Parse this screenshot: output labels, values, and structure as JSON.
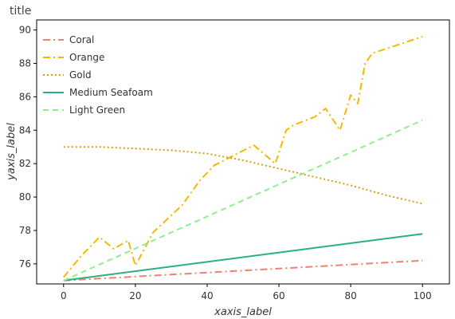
{
  "chart_data": {
    "type": "line",
    "title": "title",
    "xlabel": "xaxis_label",
    "ylabel": "yaxis_label",
    "xlim": [
      -7.5,
      107.5
    ],
    "ylim": [
      74.8,
      90.6
    ],
    "xticks": [
      0,
      20,
      40,
      60,
      80,
      100
    ],
    "yticks": [
      76,
      78,
      80,
      82,
      84,
      86,
      88,
      90
    ],
    "grid": false,
    "legend_position": "top-left",
    "series": [
      {
        "name": "Coral",
        "color": "#f08070",
        "dash": "dashdot",
        "x": [
          0,
          100
        ],
        "y": [
          75.0,
          76.2
        ]
      },
      {
        "name": "Orange",
        "color": "#f5b800",
        "dash": "dashdot",
        "x": [
          0,
          5,
          10,
          14,
          18,
          20,
          25,
          33,
          38,
          42,
          53,
          59,
          62,
          64,
          70,
          73,
          77,
          80,
          82,
          84,
          86,
          100
        ],
        "y": [
          75.2,
          76.5,
          77.6,
          76.9,
          77.4,
          75.9,
          77.9,
          79.5,
          81.0,
          81.9,
          83.1,
          82.0,
          84.0,
          84.3,
          84.8,
          85.3,
          84.0,
          86.1,
          85.6,
          88.0,
          88.6,
          89.6
        ]
      },
      {
        "name": "Gold",
        "color": "#d4a010",
        "dash": "dotted",
        "x": [
          0,
          10,
          20,
          30,
          40,
          50,
          60,
          70,
          80,
          90,
          100
        ],
        "y": [
          83.0,
          83.0,
          82.9,
          82.8,
          82.6,
          82.2,
          81.7,
          81.2,
          80.7,
          80.1,
          79.6
        ]
      },
      {
        "name": "Medium Seafoam",
        "color": "#2ab07e",
        "dash": "solid",
        "x": [
          0,
          100
        ],
        "y": [
          75.0,
          77.8
        ]
      },
      {
        "name": "Light Green",
        "color": "#90ee90",
        "dash": "dashed",
        "x": [
          0,
          100
        ],
        "y": [
          75.0,
          84.6
        ]
      }
    ]
  }
}
